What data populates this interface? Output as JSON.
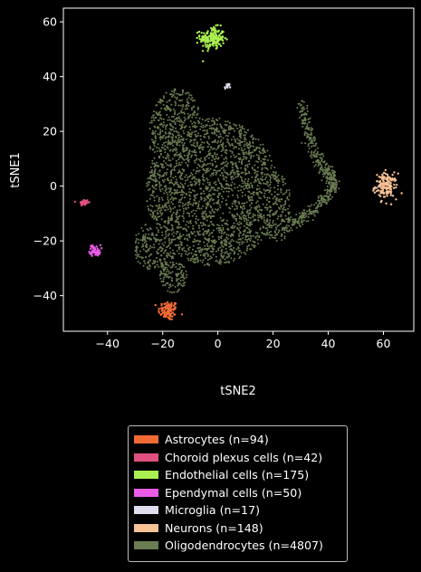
{
  "chart_data": {
    "type": "scatter",
    "title": "",
    "xlabel": "tSNE2",
    "ylabel": "tSNE1",
    "xlim": [
      -56,
      71
    ],
    "ylim": [
      -53,
      65
    ],
    "xticks": [
      -40,
      -20,
      0,
      20,
      40,
      60
    ],
    "yticks": [
      -40,
      -20,
      0,
      20,
      40,
      60
    ],
    "xtick_labels": [
      "−40",
      "−20",
      "0",
      "20",
      "40",
      "60"
    ],
    "ytick_labels": [
      "−40",
      "−20",
      "0",
      "20",
      "40",
      "60"
    ],
    "grid": false,
    "legend_position": "below",
    "series": [
      {
        "name": "Astrocytes (n=94)",
        "n": 94,
        "color": "#f26b35",
        "center": [
          -18,
          -45.5
        ],
        "spread": [
          1.8,
          1.8
        ]
      },
      {
        "name": "Choroid plexus cells (n=42)",
        "n": 42,
        "color": "#e0507f",
        "center": [
          -48.5,
          -6
        ],
        "spread": [
          0.8,
          0.6
        ]
      },
      {
        "name": "Endothelial cells (n=175)",
        "n": 175,
        "color": "#aaf050",
        "center": [
          -2,
          54
        ],
        "spread": [
          2.2,
          2.0
        ]
      },
      {
        "name": "Ependymal cells (n=50)",
        "n": 50,
        "color": "#ea5ce8",
        "center": [
          -44.5,
          -23.5
        ],
        "spread": [
          1.0,
          1.0
        ]
      },
      {
        "name": "Microglia (n=17)",
        "n": 17,
        "color": "#e0dcef",
        "center": [
          3.5,
          36.5
        ],
        "spread": [
          0.5,
          0.5
        ]
      },
      {
        "name": "Neurons (n=148)",
        "n": 148,
        "color": "#f8c196",
        "center": [
          61,
          0
        ],
        "spread": [
          2.0,
          2.3
        ]
      },
      {
        "name": "Oligodendrocytes (n=4807)",
        "n": 4807,
        "color": "#6a7c52",
        "center": [
          -2,
          -2
        ],
        "spread": [
          12,
          15
        ]
      }
    ]
  }
}
